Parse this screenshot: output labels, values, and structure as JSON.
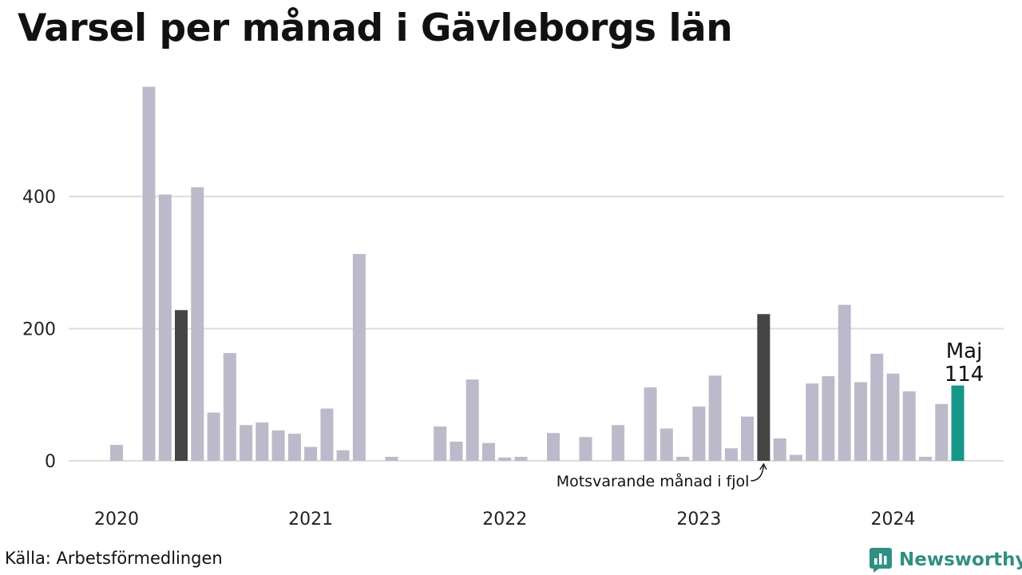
{
  "title": "Varsel per månad i Gävleborgs län",
  "source": "Källa: Arbetsförmedlingen",
  "brand": {
    "name": "Newsworthy",
    "icon": "newsworthy-logo-icon"
  },
  "colors": {
    "bar": "#bcbaca",
    "highlight_compare": "#454545",
    "highlight_current": "#17968a",
    "grid": "#dddddd",
    "brand": "#2f8f83"
  },
  "chart_data": {
    "type": "bar",
    "title": "Varsel per månad i Gävleborgs län",
    "xlabel": "",
    "ylabel": "",
    "ylim": [
      0,
      590
    ],
    "y_ticks": [
      0,
      200,
      400
    ],
    "x_ticks": [
      "2020",
      "2021",
      "2022",
      "2023",
      "2024"
    ],
    "grid": true,
    "categories": [
      "2020-01",
      "2020-02",
      "2020-03",
      "2020-04",
      "2020-05",
      "2020-06",
      "2020-07",
      "2020-08",
      "2020-09",
      "2020-10",
      "2020-11",
      "2020-12",
      "2021-01",
      "2021-02",
      "2021-03",
      "2021-04",
      "2021-05",
      "2021-06",
      "2021-07",
      "2021-08",
      "2021-09",
      "2021-10",
      "2021-11",
      "2021-12",
      "2022-01",
      "2022-02",
      "2022-03",
      "2022-04",
      "2022-05",
      "2022-06",
      "2022-07",
      "2022-08",
      "2022-09",
      "2022-10",
      "2022-11",
      "2022-12",
      "2023-01",
      "2023-02",
      "2023-03",
      "2023-04",
      "2023-05",
      "2023-06",
      "2023-07",
      "2023-08",
      "2023-09",
      "2023-10",
      "2023-11",
      "2023-12",
      "2024-01",
      "2024-02",
      "2024-03",
      "2024-04",
      "2024-05"
    ],
    "values": [
      24,
      0,
      566,
      403,
      228,
      414,
      73,
      163,
      54,
      58,
      46,
      41,
      21,
      79,
      16,
      313,
      0,
      6,
      0,
      0,
      52,
      29,
      123,
      27,
      5,
      6,
      0,
      42,
      0,
      36,
      0,
      54,
      0,
      111,
      49,
      6,
      82,
      129,
      19,
      67,
      222,
      34,
      9,
      117,
      128,
      236,
      119,
      162,
      132,
      105,
      6,
      86,
      114
    ],
    "highlights": [
      {
        "index": 4,
        "role": "compare"
      },
      {
        "index": 40,
        "role": "compare"
      },
      {
        "index": 52,
        "role": "current"
      }
    ],
    "annotations": {
      "current_month": "Maj",
      "current_value": "114",
      "compare_label": "Motsvarande månad i fjol"
    }
  }
}
